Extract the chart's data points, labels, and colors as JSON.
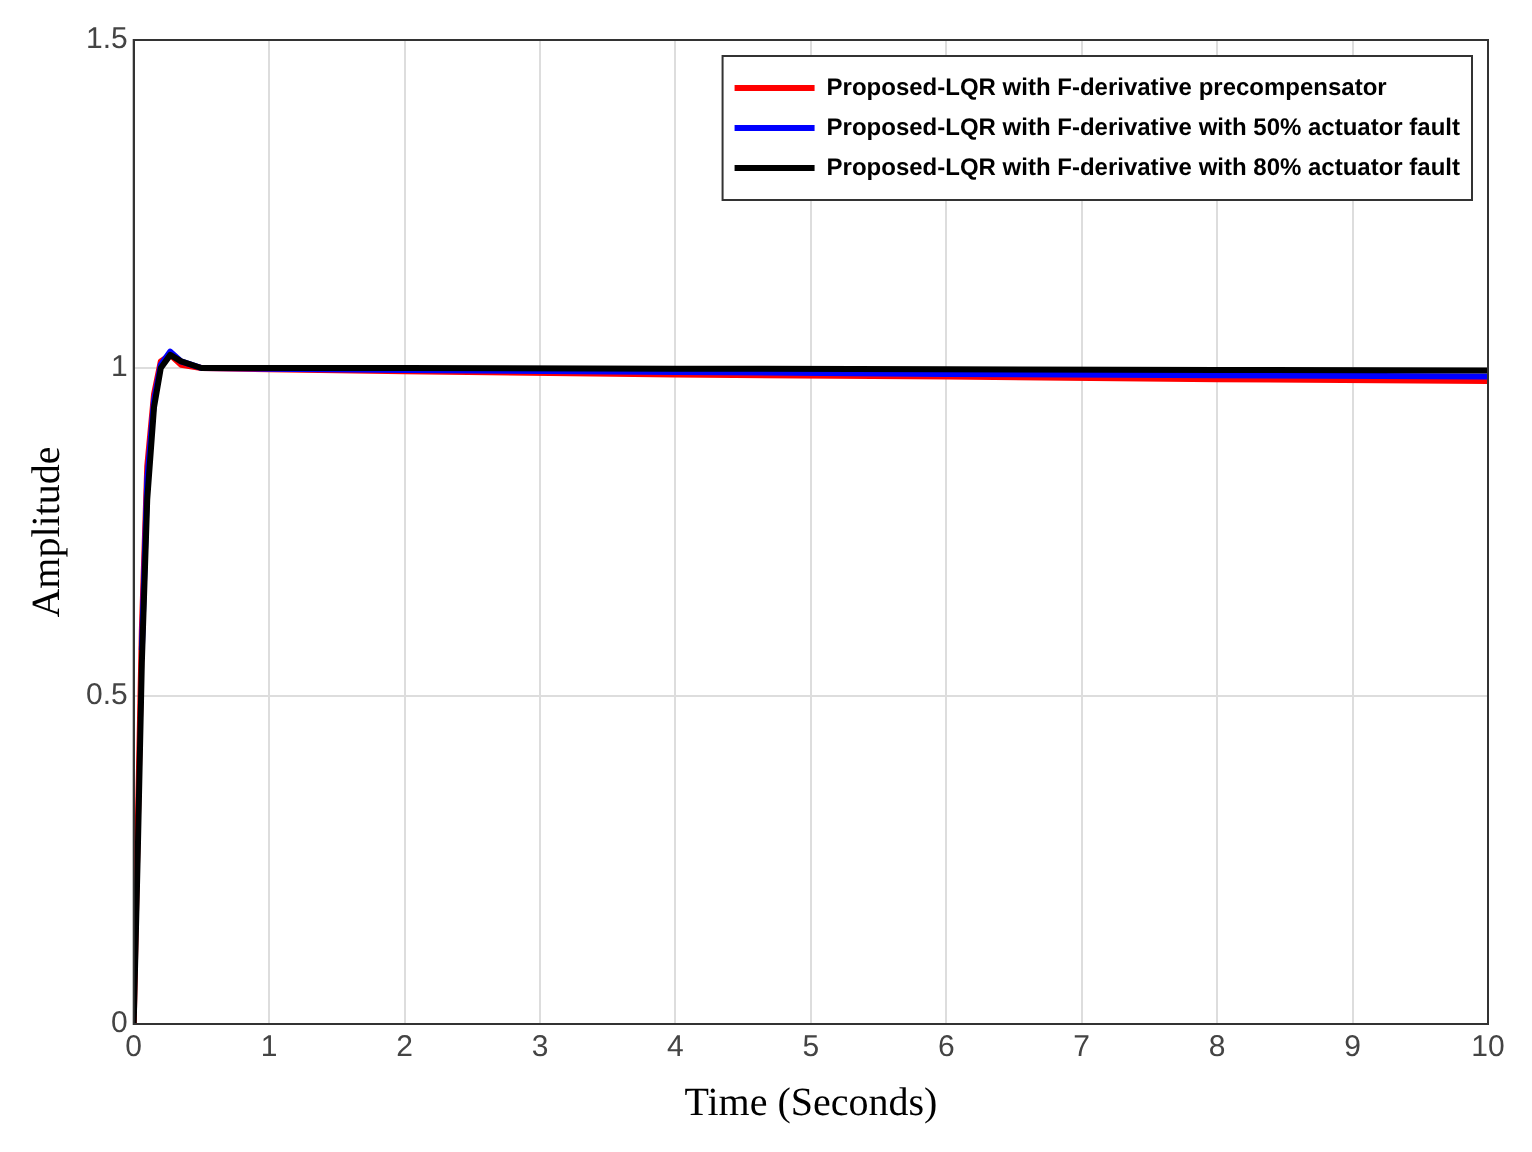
{
  "chart_data": {
    "type": "line",
    "xlabel": "Time (Seconds)",
    "ylabel": "Amplitude",
    "xlim": [
      0,
      10
    ],
    "xticks": [
      0,
      1,
      2,
      3,
      4,
      5,
      6,
      7,
      8,
      9,
      10
    ],
    "ylim": [
      0,
      1.5
    ],
    "yticks": [
      0,
      0.5,
      1,
      1.5
    ],
    "grid": true,
    "legend": "top right",
    "marker": "none",
    "line_style": "solid",
    "series": [
      {
        "name": "Proposed-LQR with F-derivative precompensator",
        "color": "#ff0000",
        "x": [
          0,
          0.03,
          0.06,
          0.1,
          0.15,
          0.2,
          0.27,
          0.35,
          0.5,
          1,
          2,
          4,
          6,
          8,
          10
        ],
        "values": [
          0,
          0.3,
          0.6,
          0.85,
          0.96,
          1.01,
          1.02,
          1.005,
          1.0,
          0.998,
          0.995,
          0.99,
          0.987,
          0.983,
          0.98
        ]
      },
      {
        "name": "Proposed-LQR with F-derivative with 50% actuator fault",
        "color": "#0000ff",
        "x": [
          0.06,
          0.1,
          0.15,
          0.2,
          0.27,
          0.35,
          0.5,
          1,
          2,
          4,
          6,
          8,
          10
        ],
        "values": [
          0.57,
          0.83,
          0.95,
          1.005,
          1.025,
          1.01,
          1.0,
          0.999,
          0.997,
          0.994,
          0.991,
          0.989,
          0.987
        ]
      },
      {
        "name": "Proposed-LQR with F-derivative with 80% actuator fault",
        "color": "#000000",
        "x": [
          0,
          0.03,
          0.06,
          0.1,
          0.15,
          0.2,
          0.27,
          0.35,
          0.5,
          1,
          2,
          4,
          6,
          8,
          10
        ],
        "values": [
          0,
          0.26,
          0.55,
          0.8,
          0.94,
          1.0,
          1.02,
          1.01,
          1.0,
          1.0,
          1.0,
          0.999,
          0.998,
          0.997,
          0.996
        ]
      }
    ]
  }
}
